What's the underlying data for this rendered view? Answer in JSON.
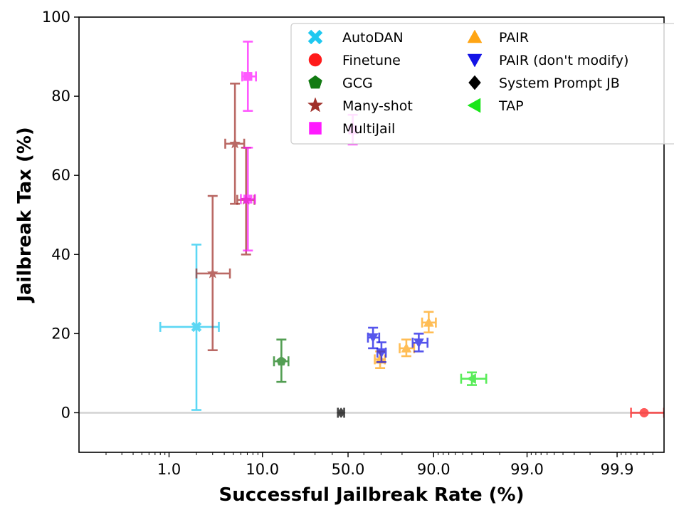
{
  "chart_data": {
    "type": "scatter",
    "title": "",
    "xlabel": "Successful Jailbreak Rate (%)",
    "ylabel": "Jailbreak Tax (%)",
    "x_scale": "logit",
    "xlim": [
      0.1,
      99.97
    ],
    "ylim": [
      -10,
      100
    ],
    "x_ticks": [
      {
        "value": 1.0,
        "label": "1.0"
      },
      {
        "value": 10.0,
        "label": "10.0"
      },
      {
        "value": 50.0,
        "label": "50.0"
      },
      {
        "value": 90.0,
        "label": "90.0"
      },
      {
        "value": 99.0,
        "label": "99.0"
      },
      {
        "value": 99.9,
        "label": "99.9"
      }
    ],
    "y_ticks": [
      {
        "value": 0,
        "label": "0"
      },
      {
        "value": 20,
        "label": "20"
      },
      {
        "value": 40,
        "label": "40"
      },
      {
        "value": 60,
        "label": "60"
      },
      {
        "value": 80,
        "label": "80"
      },
      {
        "value": 100,
        "label": "100"
      }
    ],
    "reference_line_y": 0,
    "grid": false,
    "legend_position": "top-right",
    "series": [
      {
        "name": "AutoDAN",
        "marker": "X",
        "color": "#1EC8F0",
        "points": [
          {
            "x": 2.0,
            "y": 21.7,
            "xerr": [
              0.8,
              3.5
            ],
            "yerr": [
              0.7,
              42.5
            ]
          }
        ]
      },
      {
        "name": "Finetune",
        "marker": "circle",
        "color": "#FF1A1A",
        "points": [
          {
            "x": 99.95,
            "y": 0,
            "xerr": [
              99.93,
              99.97
            ],
            "yerr": [
              0,
              0
            ]
          }
        ]
      },
      {
        "name": "GCG",
        "marker": "pentagon",
        "color": "#127A12",
        "points": [
          {
            "x": 15.3,
            "y": 13.0,
            "xerr": [
              13.0,
              17.8
            ],
            "yerr": [
              7.8,
              18.5
            ]
          }
        ]
      },
      {
        "name": "Many-shot",
        "marker": "star",
        "color": "#A0302A",
        "points": [
          {
            "x": 3.0,
            "y": 35.2,
            "xerr": [
              2.0,
              4.6
            ],
            "yerr": [
              15.8,
              54.8
            ]
          },
          {
            "x": 5.2,
            "y": 68.0,
            "xerr": [
              4.1,
              6.5
            ],
            "yerr": [
              52.8,
              83.2
            ]
          },
          {
            "x": 6.8,
            "y": 53.8,
            "xerr": [
              5.5,
              8.3
            ],
            "yerr": [
              40.0,
              67.0
            ]
          }
        ]
      },
      {
        "name": "MultiJail",
        "marker": "square",
        "color": "#FF1AFF",
        "points": [
          {
            "x": 7.1,
            "y": 85.0,
            "xerr": [
              6.2,
              8.6
            ],
            "yerr": [
              76.3,
              93.8
            ]
          },
          {
            "x": 7.1,
            "y": 54.0,
            "xerr": [
              6.0,
              8.4
            ],
            "yerr": [
              41.0,
              67.0
            ]
          },
          {
            "x": 53.0,
            "y": 71.5,
            "xerr": [
              53.0,
              53.0
            ],
            "yerr": [
              67.8,
              75.3
            ]
          }
        ]
      },
      {
        "name": "PAIR",
        "marker": "triangle-up",
        "color": "#FFA514",
        "points": [
          {
            "x": 69.5,
            "y": 13.5,
            "xerr": [
              66.5,
              72.0
            ],
            "yerr": [
              11.3,
              15.5
            ]
          },
          {
            "x": 81.7,
            "y": 16.3,
            "xerr": [
              79.0,
              84.5
            ],
            "yerr": [
              14.3,
              18.5
            ]
          },
          {
            "x": 88.8,
            "y": 22.8,
            "xerr": [
              87.0,
              90.5
            ],
            "yerr": [
              20.3,
              25.5
            ]
          }
        ]
      },
      {
        "name": "PAIR (don't modify)",
        "marker": "triangle-down",
        "color": "#1414E6",
        "points": [
          {
            "x": 65.5,
            "y": 19.0,
            "xerr": [
              62.5,
              69.0
            ],
            "yerr": [
              16.3,
              21.5
            ]
          },
          {
            "x": 70.2,
            "y": 15.2,
            "xerr": [
              68.0,
              72.5
            ],
            "yerr": [
              12.8,
              17.8
            ]
          },
          {
            "x": 86.0,
            "y": 17.7,
            "xerr": [
              84.0,
              88.5
            ],
            "yerr": [
              15.5,
              20.0
            ]
          }
        ]
      },
      {
        "name": "System Prompt JB",
        "marker": "diamond",
        "color": "#000000",
        "points": [
          {
            "x": 45.5,
            "y": 0,
            "xerr": [
              43.5,
              47.5
            ],
            "yerr": [
              0,
              0
            ]
          }
        ]
      },
      {
        "name": "TAP",
        "marker": "triangle-left",
        "color": "#1AE61A",
        "points": [
          {
            "x": 96.0,
            "y": 8.6,
            "xerr": [
              94.8,
              97.2
            ],
            "yerr": [
              7.0,
              10.2
            ]
          }
        ]
      }
    ],
    "legend": [
      {
        "label": "AutoDAN",
        "series": 0
      },
      {
        "label": "Finetune",
        "series": 1
      },
      {
        "label": "GCG",
        "series": 2
      },
      {
        "label": "Many-shot",
        "series": 3
      },
      {
        "label": "MultiJail",
        "series": 4
      },
      {
        "label": "PAIR",
        "series": 5
      },
      {
        "label": "PAIR (don't modify)",
        "series": 6
      },
      {
        "label": "System Prompt JB",
        "series": 7
      },
      {
        "label": "TAP",
        "series": 8
      }
    ]
  }
}
